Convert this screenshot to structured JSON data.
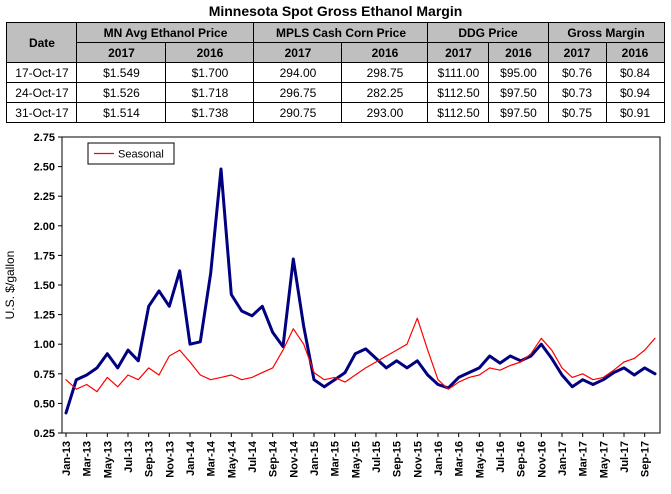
{
  "title": "Minnesota Spot Gross Ethanol Margin",
  "table": {
    "date_header": "Date",
    "groups": [
      "MN Avg Ethanol Price",
      "MPLS Cash Corn Price",
      "DDG Price",
      "Gross Margin"
    ],
    "year_headers": [
      "2017",
      "2016",
      "2017",
      "2016",
      "2017",
      "2016",
      "2017",
      "2016"
    ],
    "rows": [
      {
        "date": "17-Oct-17",
        "values": [
          "$1.549",
          "$1.700",
          "294.00",
          "298.75",
          "$111.00",
          "$95.00",
          "$0.76",
          "$0.84"
        ]
      },
      {
        "date": "24-Oct-17",
        "values": [
          "$1.526",
          "$1.718",
          "296.75",
          "282.25",
          "$112.50",
          "$97.50",
          "$0.73",
          "$0.94"
        ]
      },
      {
        "date": "31-Oct-17",
        "values": [
          "$1.514",
          "$1.738",
          "290.75",
          "293.00",
          "$112.50",
          "$97.50",
          "$0.75",
          "$0.91"
        ]
      }
    ]
  },
  "chart_data": {
    "type": "line",
    "title": "Minnesota Spot Gross Ethanol Margin",
    "xlabel": "",
    "ylabel": "U.S. $/gallon",
    "ylim": [
      0.25,
      2.75
    ],
    "ytick_step": 0.25,
    "grid": false,
    "legend": {
      "position": "top-left",
      "entries": [
        "Seasonal"
      ]
    },
    "xtick_every": 2,
    "x": [
      "Jan-13",
      "Feb-13",
      "Mar-13",
      "Apr-13",
      "May-13",
      "Jun-13",
      "Jul-13",
      "Aug-13",
      "Sep-13",
      "Oct-13",
      "Nov-13",
      "Dec-13",
      "Jan-14",
      "Feb-14",
      "Mar-14",
      "Apr-14",
      "May-14",
      "Jun-14",
      "Jul-14",
      "Aug-14",
      "Sep-14",
      "Oct-14",
      "Nov-14",
      "Dec-14",
      "Jan-15",
      "Feb-15",
      "Mar-15",
      "Apr-15",
      "May-15",
      "Jun-15",
      "Jul-15",
      "Aug-15",
      "Sep-15",
      "Oct-15",
      "Nov-15",
      "Dec-15",
      "Jan-16",
      "Feb-16",
      "Mar-16",
      "Apr-16",
      "May-16",
      "Jun-16",
      "Jul-16",
      "Aug-16",
      "Sep-16",
      "Oct-16",
      "Nov-16",
      "Dec-16",
      "Jan-17",
      "Feb-17",
      "Mar-17",
      "Apr-17",
      "May-17",
      "Jun-17",
      "Jul-17",
      "Aug-17",
      "Sep-17",
      "Oct-17"
    ],
    "series": [
      {
        "name": "Gross Margin",
        "color": "#000080",
        "width": 3,
        "values": [
          0.42,
          0.7,
          0.74,
          0.8,
          0.92,
          0.8,
          0.95,
          0.86,
          1.32,
          1.45,
          1.32,
          1.62,
          1.0,
          1.02,
          1.6,
          2.48,
          1.42,
          1.28,
          1.24,
          1.32,
          1.1,
          0.98,
          1.72,
          1.15,
          0.7,
          0.64,
          0.7,
          0.76,
          0.92,
          0.96,
          0.88,
          0.8,
          0.86,
          0.8,
          0.86,
          0.74,
          0.66,
          0.63,
          0.72,
          0.76,
          0.8,
          0.9,
          0.84,
          0.9,
          0.86,
          0.9,
          1.0,
          0.88,
          0.74,
          0.64,
          0.7,
          0.66,
          0.7,
          0.76,
          0.8,
          0.74,
          0.8,
          0.75
        ]
      },
      {
        "name": "Seasonal",
        "color": "#FF0000",
        "width": 1.2,
        "values": [
          0.7,
          0.62,
          0.66,
          0.6,
          0.72,
          0.64,
          0.74,
          0.7,
          0.8,
          0.74,
          0.9,
          0.95,
          0.85,
          0.74,
          0.7,
          0.72,
          0.74,
          0.7,
          0.72,
          0.76,
          0.8,
          0.95,
          1.13,
          1.0,
          0.76,
          0.7,
          0.72,
          0.68,
          0.74,
          0.8,
          0.85,
          0.9,
          0.95,
          1.0,
          1.22,
          0.95,
          0.7,
          0.62,
          0.68,
          0.72,
          0.74,
          0.8,
          0.78,
          0.82,
          0.85,
          0.92,
          1.05,
          0.95,
          0.8,
          0.72,
          0.75,
          0.7,
          0.72,
          0.78,
          0.85,
          0.88,
          0.95,
          1.05
        ]
      }
    ]
  }
}
